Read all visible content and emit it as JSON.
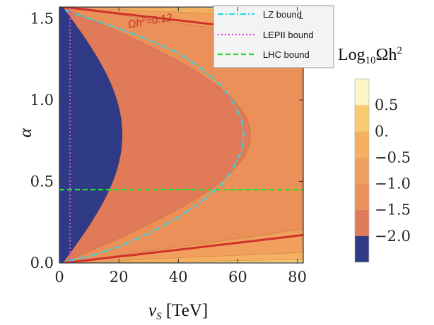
{
  "chart_data": {
    "type": "contour",
    "xlabel": "v_S [TeV]",
    "ylabel": "α",
    "xlim": [
      0,
      82
    ],
    "ylim": [
      0,
      1.5708
    ],
    "x_ticks": [
      "0",
      "20",
      "40",
      "60",
      "80"
    ],
    "y_ticks": [
      "0.0",
      "0.5",
      "1.0",
      "1.5"
    ],
    "x_tick_values": [
      0,
      20,
      40,
      60,
      80
    ],
    "y_tick_values": [
      0.0,
      0.5,
      1.0,
      1.5
    ],
    "colorbar": {
      "title": "Log10Ωh2",
      "title_main": "Log",
      "title_sub": "10",
      "title_rest": "Ωh",
      "title_sup": "2",
      "labels": [
        "0.5",
        "0.",
        "−0.5",
        "−1.0",
        "−1.5",
        "−2.0"
      ],
      "levels": [
        -2.0,
        -1.5,
        -1.0,
        -0.5,
        0.0,
        0.5
      ],
      "colors": [
        "#fdf4c8",
        "#f8cb70",
        "#f5b061",
        "#f0a05c",
        "#eb9058",
        "#e07a58",
        "#2e3a86"
      ]
    },
    "contour_model": {
      "min_level_vertex_vS": 1.2,
      "log_offset": -3.3,
      "log_scale": 1.0
    },
    "relic_line": {
      "label_main": "Ωh",
      "label_sup": "2",
      "label_rest": "=0.12",
      "color": "#d0312d",
      "level": -0.92
    },
    "series": [
      {
        "name": "LZ bound",
        "style": "dash-dot",
        "color": "#2ad8e8",
        "x": [
          2,
          10,
          20,
          30,
          40,
          48,
          55,
          59,
          61.5,
          62,
          61.5,
          59,
          55,
          48,
          40,
          30,
          20,
          10,
          2
        ],
        "y": [
          1.55,
          1.5,
          1.44,
          1.37,
          1.29,
          1.19,
          1.08,
          0.97,
          0.86,
          0.785,
          0.7,
          0.6,
          0.49,
          0.38,
          0.28,
          0.18,
          0.1,
          0.04,
          0.01
        ]
      },
      {
        "name": "LEPII bound",
        "style": "dotted",
        "color": "#e040e0",
        "x": [
          3.6,
          3.6
        ],
        "y": [
          0.0,
          1.5708
        ]
      },
      {
        "name": "LHC bound",
        "style": "dashed",
        "color": "#26e02a",
        "x": [
          0,
          82
        ],
        "y": [
          0.45,
          0.45
        ]
      }
    ],
    "legend": {
      "placement": "top-right",
      "entries": [
        "LZ bound",
        "LEPII bound",
        "LHC bound"
      ]
    }
  }
}
